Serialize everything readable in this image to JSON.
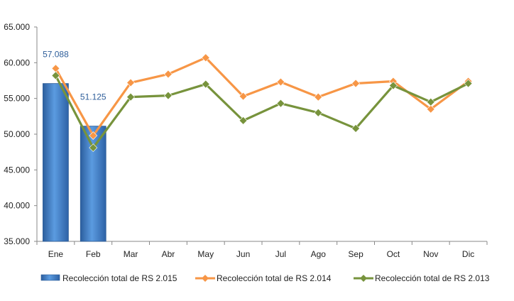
{
  "chart_data": {
    "type": "bar+line",
    "categories": [
      "Ene",
      "Feb",
      "Mar",
      "Abr",
      "May",
      "Jun",
      "Jul",
      "Ago",
      "Sep",
      "Oct",
      "Nov",
      "Dic"
    ],
    "ylim": [
      35000,
      65000
    ],
    "yticks": [
      35000,
      40000,
      45000,
      50000,
      55000,
      60000,
      65000
    ],
    "ytick_labels": [
      "35.000",
      "40.000",
      "45.000",
      "50.000",
      "55.000",
      "60.000",
      "65.000"
    ],
    "grid": false,
    "legend_position": "bottom",
    "series": [
      {
        "name": "Recolección total de RS 2.015",
        "kind": "bar",
        "color": "#4A86D0",
        "values": [
          57088,
          51125,
          null,
          null,
          null,
          null,
          null,
          null,
          null,
          null,
          null,
          null
        ],
        "data_labels": [
          "57.088",
          "51.125",
          null,
          null,
          null,
          null,
          null,
          null,
          null,
          null,
          null,
          null
        ]
      },
      {
        "name": "Recolección total de RS 2.014",
        "kind": "line",
        "color": "#F79646",
        "values": [
          59200,
          49800,
          57200,
          58400,
          60700,
          55300,
          57300,
          55200,
          57100,
          57400,
          53500,
          57400
        ]
      },
      {
        "name": "Recolección total de RS 2.013",
        "kind": "line",
        "color": "#77933C",
        "values": [
          58200,
          48100,
          55200,
          55400,
          57000,
          51900,
          54300,
          53000,
          50800,
          56800,
          54500,
          57100
        ]
      }
    ]
  }
}
